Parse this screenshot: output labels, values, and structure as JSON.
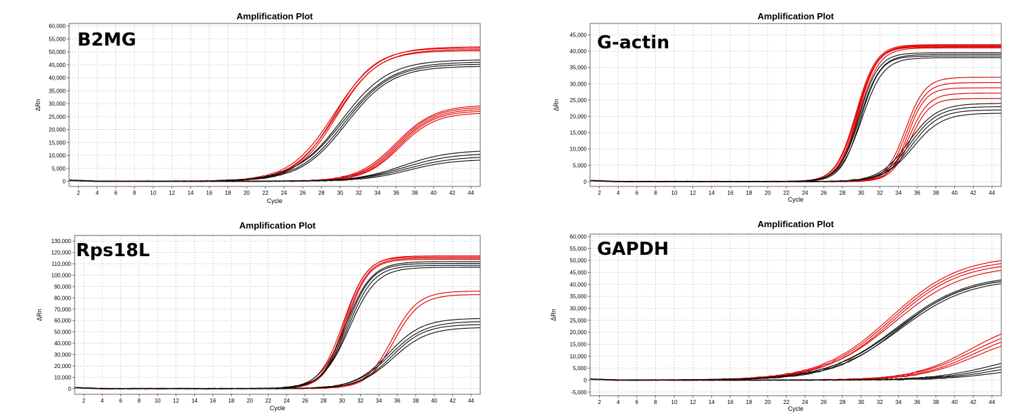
{
  "chart_data": [
    {
      "type": "line",
      "title": "Amplification Plot",
      "gene_label": "B2MG",
      "xlabel": "Cycle",
      "ylabel": "ΔRn",
      "xlim": [
        1,
        45
      ],
      "ylim": [
        -2000,
        61000
      ],
      "xticks": [
        2,
        4,
        6,
        8,
        10,
        12,
        14,
        16,
        18,
        20,
        22,
        24,
        26,
        28,
        30,
        32,
        34,
        36,
        38,
        40,
        42,
        44
      ],
      "xtick_labels": [
        "2",
        "4",
        "6",
        "8",
        "10",
        "12",
        "14",
        "16",
        "18",
        "20",
        "22",
        "24",
        "26",
        "28",
        "30",
        "32",
        "34",
        "36",
        "38",
        "40",
        "42",
        "44"
      ],
      "yticks": [
        0,
        5000,
        10000,
        15000,
        20000,
        25000,
        30000,
        35000,
        40000,
        45000,
        50000,
        55000,
        60000
      ],
      "ytick_labels": [
        "0",
        "5,000",
        "10,000",
        "15,000",
        "20,000",
        "25,000",
        "30,000",
        "35,000",
        "40,000",
        "45,000",
        "50,000",
        "55,000",
        "60,000"
      ],
      "grid": true,
      "groups": [
        {
          "color": "#e00000",
          "n": 4,
          "ct": 29.5,
          "plateau": 52000,
          "slope": 2.3,
          "spread": 1500,
          "offset": 0.3
        },
        {
          "color": "#111111",
          "n": 4,
          "ct": 30.4,
          "plateau": 47000,
          "slope": 2.6,
          "spread": 2500,
          "offset": 0.5
        },
        {
          "color": "#e00000",
          "n": 5,
          "ct": 36.2,
          "plateau": 29500,
          "slope": 2.0,
          "spread": 3000,
          "offset": 0.4
        },
        {
          "color": "#111111",
          "n": 4,
          "ct": 37.0,
          "plateau": 12000,
          "slope": 2.5,
          "spread": 3500,
          "offset": 0.6
        }
      ]
    },
    {
      "type": "line",
      "title": "Amplification Plot",
      "gene_label": "G-actin",
      "xlabel": "Cycle",
      "ylabel": "ΔRn",
      "xlim": [
        1,
        45
      ],
      "ylim": [
        -1500,
        48500
      ],
      "xticks": [
        2,
        4,
        6,
        8,
        10,
        12,
        14,
        16,
        18,
        20,
        22,
        24,
        26,
        28,
        30,
        32,
        34,
        36,
        38,
        40,
        42,
        44
      ],
      "xtick_labels": [
        "2",
        "4",
        "6",
        "8",
        "10",
        "12",
        "14",
        "16",
        "18",
        "20",
        "22",
        "24",
        "26",
        "28",
        "30",
        "32",
        "34",
        "36",
        "38",
        "40",
        "42",
        "44"
      ],
      "yticks": [
        0,
        5000,
        10000,
        15000,
        20000,
        25000,
        30000,
        35000,
        40000,
        45000
      ],
      "ytick_labels": [
        "0",
        "5,000",
        "10,000",
        "15,000",
        "20,000",
        "25,000",
        "30,000",
        "35,000",
        "40,000",
        "45,000"
      ],
      "grid": true,
      "groups": [
        {
          "color": "#e00000",
          "n": 5,
          "ct": 29.6,
          "plateau": 42000,
          "slope": 1.05,
          "spread": 1000,
          "offset": 0.3
        },
        {
          "color": "#111111",
          "n": 4,
          "ct": 29.9,
          "plateau": 39500,
          "slope": 1.1,
          "spread": 1500,
          "offset": 0.3
        },
        {
          "color": "#e00000",
          "n": 5,
          "ct": 35.0,
          "plateau": 32000,
          "slope": 1.0,
          "spread": 6500,
          "offset": 0.5
        },
        {
          "color": "#111111",
          "n": 4,
          "ct": 35.3,
          "plateau": 24000,
          "slope": 1.5,
          "spread": 3000,
          "offset": 0.5
        }
      ]
    },
    {
      "type": "line",
      "title": "Amplification Plot",
      "gene_label": "Rps18L",
      "xlabel": "Cycle",
      "ylabel": "ΔRn",
      "xlim": [
        1,
        45
      ],
      "ylim": [
        -5000,
        135000
      ],
      "xticks": [
        2,
        4,
        6,
        8,
        10,
        12,
        14,
        16,
        18,
        20,
        22,
        24,
        26,
        28,
        30,
        32,
        34,
        36,
        38,
        40,
        42,
        44
      ],
      "xtick_labels": [
        "2",
        "4",
        "6",
        "8",
        "10",
        "12",
        "14",
        "16",
        "18",
        "20",
        "22",
        "24",
        "26",
        "28",
        "30",
        "32",
        "34",
        "36",
        "38",
        "40",
        "42",
        "44"
      ],
      "yticks": [
        0,
        10000,
        20000,
        30000,
        40000,
        50000,
        60000,
        70000,
        80000,
        90000,
        100000,
        110000,
        120000,
        130000
      ],
      "ytick_labels": [
        "0",
        "10,000",
        "20,000",
        "30,000",
        "40,000",
        "50,000",
        "60,000",
        "70,000",
        "80,000",
        "90,000",
        "100,000",
        "110,000",
        "120,000",
        "130,000"
      ],
      "grid": true,
      "groups": [
        {
          "color": "#e00000",
          "n": 4,
          "ct": 30.3,
          "plateau": 117000,
          "slope": 1.25,
          "spread": 3000,
          "offset": 0.3
        },
        {
          "color": "#111111",
          "n": 4,
          "ct": 30.6,
          "plateau": 112000,
          "slope": 1.4,
          "spread": 5000,
          "offset": 0.4
        },
        {
          "color": "#e00000",
          "n": 2,
          "ct": 35.5,
          "plateau": 86000,
          "slope": 1.4,
          "spread": 3000,
          "offset": 0.2
        },
        {
          "color": "#111111",
          "n": 4,
          "ct": 35.3,
          "plateau": 62000,
          "slope": 1.8,
          "spread": 8000,
          "offset": 0.5
        }
      ]
    },
    {
      "type": "line",
      "title": "Amplification Plot",
      "gene_label": "GAPDH",
      "xlabel": "Cycle",
      "ylabel": "ΔRn",
      "xlim": [
        1,
        45
      ],
      "ylim": [
        -6500,
        61000
      ],
      "xticks": [
        2,
        4,
        6,
        8,
        10,
        12,
        14,
        16,
        18,
        20,
        22,
        24,
        26,
        28,
        30,
        32,
        34,
        36,
        38,
        40,
        42,
        44
      ],
      "xtick_labels": [
        "2",
        "4",
        "6",
        "8",
        "10",
        "12",
        "14",
        "16",
        "18",
        "20",
        "22",
        "24",
        "26",
        "28",
        "30",
        "32",
        "34",
        "36",
        "38",
        "40",
        "42",
        "44"
      ],
      "yticks": [
        -5000,
        0,
        5000,
        10000,
        15000,
        20000,
        25000,
        30000,
        35000,
        40000,
        45000,
        50000,
        55000,
        60000
      ],
      "ytick_labels": [
        "-5,000",
        "0",
        "5,000",
        "10,000",
        "15,000",
        "20,000",
        "25,000",
        "30,000",
        "35,000",
        "40,000",
        "45,000",
        "50,000",
        "55,000",
        "60,000"
      ],
      "grid": true,
      "groups": [
        {
          "color": "#e00000",
          "n": 4,
          "ct": 33.3,
          "plateau": 52000,
          "slope": 3.6,
          "spread": 4000,
          "offset": 0.4
        },
        {
          "color": "#111111",
          "n": 4,
          "ct": 34.0,
          "plateau": 44000,
          "slope": 3.6,
          "spread": 1500,
          "offset": 0.3
        },
        {
          "color": "#e00000",
          "n": 4,
          "ct": 42.0,
          "plateau": 26000,
          "slope": 3.2,
          "spread": 6000,
          "offset": 0.5
        },
        {
          "color": "#111111",
          "n": 4,
          "ct": 45.0,
          "plateau": 13000,
          "slope": 3.2,
          "spread": 6000,
          "offset": 1.0
        }
      ]
    }
  ]
}
